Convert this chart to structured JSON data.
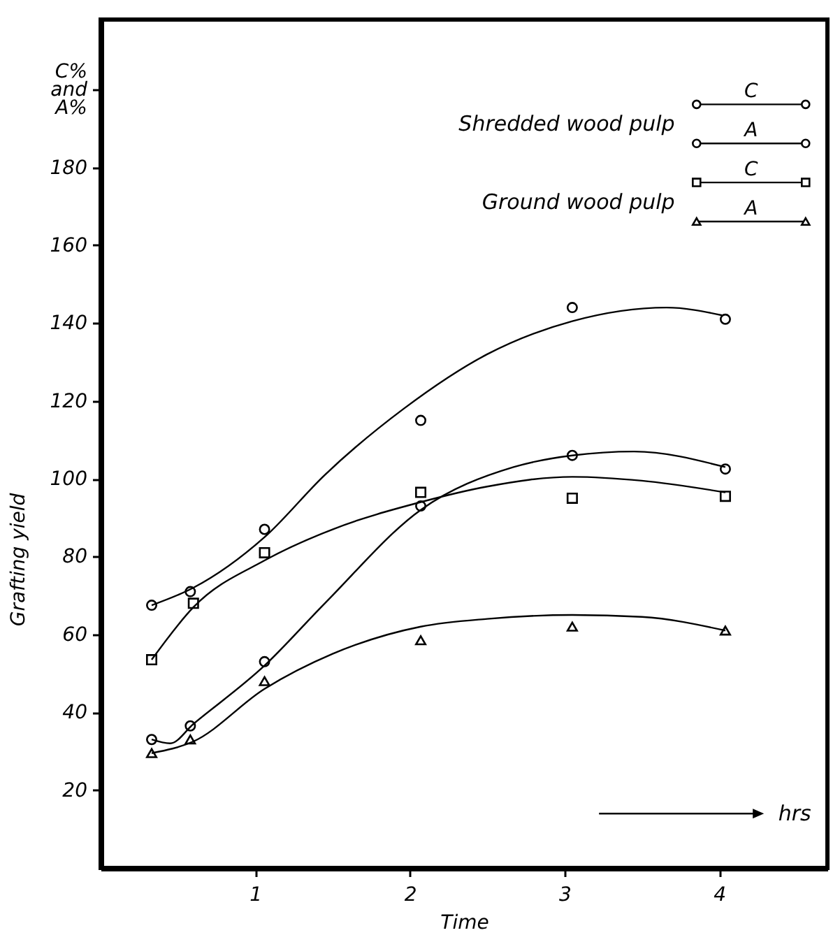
{
  "chart_data": {
    "type": "scatter",
    "xlabel": "Time",
    "ylabel": "Grafting yield",
    "xlim": [
      0,
      4.7
    ],
    "xticks": [
      1,
      2,
      3,
      4
    ],
    "ylim": [
      0,
      218
    ],
    "yticks": [
      20,
      40,
      60,
      80,
      100,
      120,
      140,
      160,
      180,
      {
        "value": 200,
        "label": "C% and A%"
      }
    ],
    "grid": false,
    "legend": "top right",
    "annotations": [
      "Shredded wood pulp",
      "Ground wood pulp",
      "hrs"
    ],
    "series": [
      {
        "name": "C",
        "marker": "circle",
        "color": "#000000",
        "x": [
          0.33,
          0.58,
          1.06,
          2.07,
          3.05,
          4.04
        ],
        "values": [
          67.5,
          71,
          87,
          115,
          144,
          141
        ]
      },
      {
        "name": "A",
        "marker": "circle",
        "color": "#000000",
        "x": [
          0.33,
          0.58,
          1.06,
          2.07,
          3.05,
          4.04
        ],
        "values": [
          33,
          36.5,
          53,
          93,
          106,
          102.5
        ]
      },
      {
        "name": "C",
        "marker": "square",
        "color": "#000000",
        "x": [
          0.33,
          0.6,
          1.06,
          2.07,
          3.05,
          4.04
        ],
        "values": [
          53.5,
          68,
          81,
          96.5,
          95,
          95.5
        ]
      },
      {
        "name": "A",
        "marker": "triangle",
        "color": "#000000",
        "x": [
          0.33,
          0.58,
          1.06,
          2.07,
          3.05,
          4.04
        ],
        "values": [
          29.5,
          33,
          48,
          58.5,
          62,
          61
        ]
      },
      {
        "type": "line",
        "color": "#000000",
        "line_style": "solid",
        "x": [
          0.33,
          0.6,
          1.06,
          1.45,
          1.96,
          2.5,
          3.05,
          3.66,
          4.02
        ],
        "values": [
          67.5,
          72,
          85,
          101,
          118,
          132,
          140.5,
          144,
          142
        ]
      },
      {
        "type": "line",
        "color": "#000000",
        "line_style": "solid",
        "x": [
          0.33,
          0.45,
          0.6,
          1.06,
          1.45,
          2.07,
          2.67,
          3.05,
          3.45,
          4.04
        ],
        "values": [
          33,
          32,
          37,
          52,
          68,
          92,
          103,
          106,
          107,
          103
        ]
      },
      {
        "type": "line",
        "color": "#000000",
        "line_style": "solid",
        "x": [
          0.33,
          0.6,
          1.06,
          1.5,
          2.07,
          2.5,
          3.05,
          3.5,
          4.04
        ],
        "values": [
          53.5,
          67,
          79,
          87,
          94,
          98,
          100.5,
          99.5,
          96.5
        ]
      },
      {
        "type": "line",
        "color": "#000000",
        "line_style": "solid",
        "x": [
          0.33,
          0.6,
          1.06,
          1.5,
          2.07,
          2.5,
          3.05,
          3.5,
          4.04
        ],
        "values": [
          29.5,
          32.5,
          46,
          55,
          62,
          64,
          65,
          64.5,
          61
        ]
      }
    ]
  }
}
